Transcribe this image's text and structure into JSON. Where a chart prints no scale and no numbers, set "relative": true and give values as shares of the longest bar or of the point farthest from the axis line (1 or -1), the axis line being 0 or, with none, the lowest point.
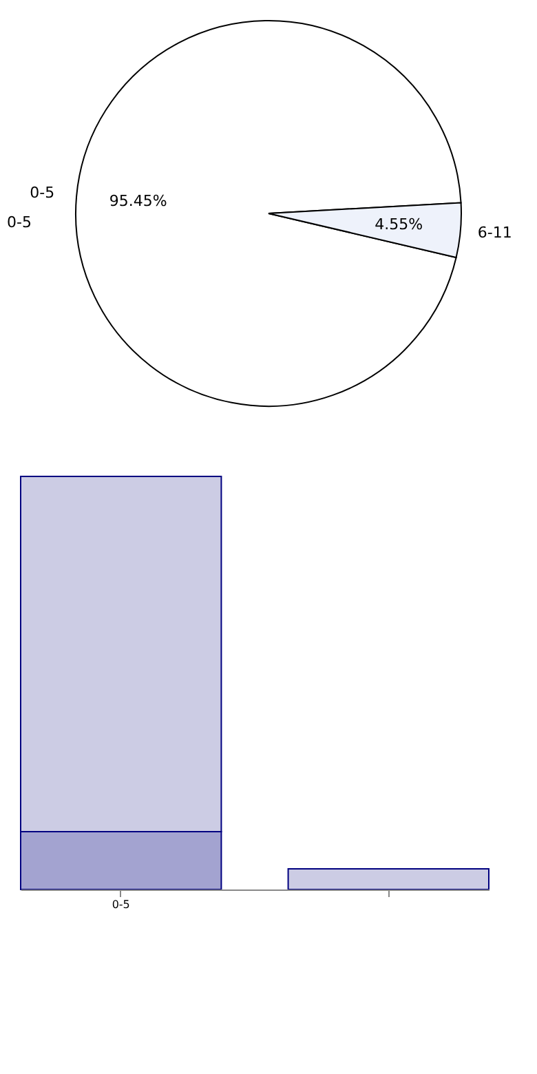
{
  "chart_data": [
    {
      "type": "pie",
      "categories": [
        "0-5",
        "6-11"
      ],
      "values": [
        95.45,
        4.55
      ],
      "colors": [
        "#ffffff",
        "#eef2fb"
      ],
      "value_labels": [
        "95.45%",
        "4.55%"
      ],
      "annotations": [
        "0-5"
      ],
      "legend": false
    },
    {
      "type": "bar",
      "stacked": true,
      "relative": true,
      "categories": [
        "0-5",
        null
      ],
      "legend": false,
      "series": [
        {
          "color": "#a3a3d0",
          "values": [
            0.14,
            null
          ]
        },
        {
          "color": "#ccccE4",
          "values": [
            0.86,
            0.05
          ]
        }
      ]
    }
  ]
}
